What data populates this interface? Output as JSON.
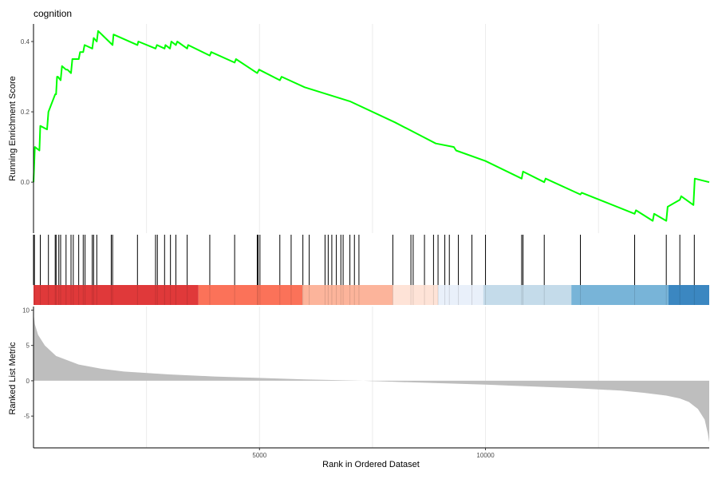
{
  "chart_data": {
    "type": "line",
    "title": "cognition",
    "xlabel": "Rank in Ordered Dataset",
    "xlim": [
      0,
      14950
    ],
    "x_ticks": [
      5000,
      10000
    ],
    "x_tick_labels": [
      "5000",
      "10000"
    ],
    "grid": "vertical-minor",
    "es_panel": {
      "ylabel": "Running Enrichment Score",
      "ylim": [
        -0.145,
        0.45
      ],
      "y_ticks": [
        0.0,
        0.2,
        0.4
      ],
      "y_tick_labels": [
        "0.0",
        "0.2",
        "0.4"
      ],
      "line_color": "#00ff00",
      "series": [
        {
          "x": [
            0,
            30,
            130,
            150,
            300,
            330,
            480,
            500,
            520,
            540,
            600,
            630,
            720,
            750,
            830,
            860,
            1000,
            1030,
            1100,
            1130,
            1300,
            1330,
            1400,
            1430,
            1750,
            1770,
            2300,
            2320,
            2700,
            2730,
            2900,
            2920,
            3020,
            3050,
            3150,
            3180,
            3400,
            3420,
            3900,
            3930,
            4450,
            4480,
            4950,
            4990,
            5450,
            5490,
            6000,
            7000,
            8000,
            8600,
            8900,
            9300,
            9350,
            10000,
            10800,
            10830,
            11300,
            11330,
            12100,
            12130,
            13300,
            13330,
            13700,
            13730,
            14000,
            14030,
            14300,
            14330,
            14600,
            14630,
            14950
          ],
          "y": [
            0.0,
            0.1,
            0.09,
            0.16,
            0.15,
            0.2,
            0.25,
            0.25,
            0.3,
            0.3,
            0.29,
            0.33,
            0.32,
            0.32,
            0.31,
            0.35,
            0.35,
            0.37,
            0.37,
            0.39,
            0.38,
            0.41,
            0.4,
            0.43,
            0.39,
            0.42,
            0.39,
            0.4,
            0.38,
            0.39,
            0.38,
            0.39,
            0.38,
            0.4,
            0.39,
            0.4,
            0.38,
            0.39,
            0.36,
            0.37,
            0.34,
            0.35,
            0.31,
            0.32,
            0.29,
            0.3,
            0.27,
            0.23,
            0.17,
            0.13,
            0.11,
            0.1,
            0.09,
            0.06,
            0.01,
            0.03,
            0.0,
            0.01,
            -0.035,
            -0.03,
            -0.09,
            -0.08,
            -0.11,
            -0.09,
            -0.11,
            -0.07,
            -0.05,
            -0.04,
            -0.065,
            0.01,
            0.0
          ]
        }
      ]
    },
    "hits": [
      20,
      150,
      330,
      480,
      500,
      560,
      600,
      720,
      830,
      880,
      1000,
      1100,
      1140,
      1300,
      1330,
      1400,
      1720,
      1750,
      2300,
      2700,
      2740,
      2900,
      3030,
      3150,
      3400,
      3900,
      4450,
      4950,
      4970,
      5010,
      5450,
      5700,
      5960,
      6100,
      6450,
      6520,
      6600,
      6700,
      6800,
      6850,
      7000,
      7100,
      7200,
      7950,
      8350,
      8400,
      8650,
      8850,
      8950,
      9100,
      9200,
      9400,
      9700,
      10000,
      10800,
      10830,
      11300,
      12100,
      13300,
      14000,
      14300,
      14620
    ],
    "rank_bands": [
      {
        "from": 0,
        "to": 3650,
        "color": "#e0393a"
      },
      {
        "from": 3650,
        "to": 5950,
        "color": "#fb7259"
      },
      {
        "from": 5950,
        "to": 7950,
        "color": "#fcb49b"
      },
      {
        "from": 7950,
        "to": 8950,
        "color": "#fee3d7"
      },
      {
        "from": 8950,
        "to": 9950,
        "color": "#e9f0fa"
      },
      {
        "from": 9950,
        "to": 11900,
        "color": "#c4dbea"
      },
      {
        "from": 11900,
        "to": 14050,
        "color": "#78b4d8"
      },
      {
        "from": 14050,
        "to": 14950,
        "color": "#3b87c1"
      }
    ],
    "metric_panel": {
      "ylabel": "Ranked List Metric",
      "ylim": [
        -9.5,
        10.5
      ],
      "y_ticks": [
        -5,
        0,
        5,
        10
      ],
      "y_tick_labels": [
        "-5",
        "0",
        "5",
        "10"
      ],
      "fill_color": "#bebebe",
      "series": [
        {
          "x": [
            0,
            30,
            100,
            250,
            500,
            1000,
            1500,
            2000,
            3000,
            4000,
            5000,
            6000,
            7000,
            7300,
            7500,
            8000,
            9000,
            10000,
            11000,
            12000,
            13000,
            13500,
            14000,
            14300,
            14500,
            14700,
            14850,
            14920,
            14950
          ],
          "y": [
            9.5,
            8.0,
            6.5,
            5.0,
            3.5,
            2.3,
            1.7,
            1.3,
            0.9,
            0.6,
            0.4,
            0.2,
            0.05,
            0.0,
            -0.05,
            -0.15,
            -0.35,
            -0.55,
            -0.8,
            -1.05,
            -1.4,
            -1.7,
            -2.1,
            -2.5,
            -3.0,
            -4.0,
            -5.5,
            -7.5,
            -8.7
          ]
        }
      ]
    }
  }
}
